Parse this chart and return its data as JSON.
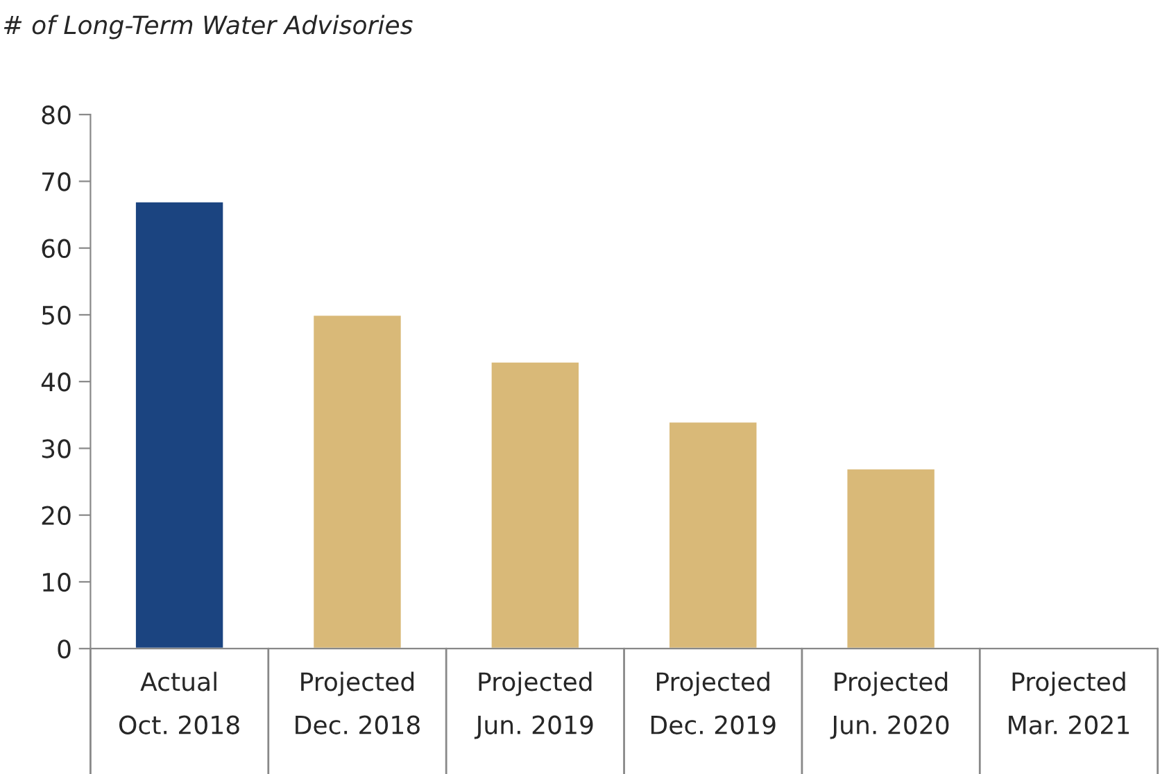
{
  "chart_data": {
    "type": "bar",
    "ylabel": "# of Long-Term Water Advisories",
    "categories": [
      "Actual\nOct. 2018",
      "Projected\nDec. 2018",
      "Projected\nJun. 2019",
      "Projected\nDec. 2019",
      "Projected\nJun. 2020",
      "Projected\nMar. 2021"
    ],
    "values": [
      67,
      50,
      43,
      34,
      27,
      null
    ],
    "colors": [
      "#1b4480",
      "#d9b978",
      "#d9b978",
      "#d9b978",
      "#d9b978",
      "#d9b978"
    ],
    "ylim": [
      0,
      80
    ],
    "yticks": [
      0,
      10,
      20,
      30,
      40,
      50,
      60,
      70,
      80
    ],
    "grid": false
  }
}
